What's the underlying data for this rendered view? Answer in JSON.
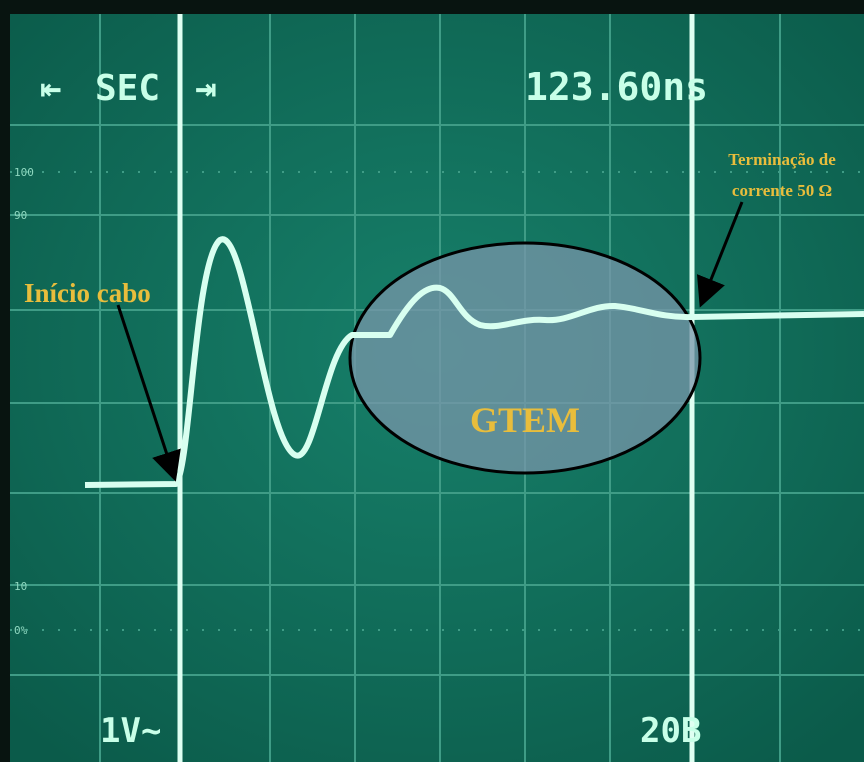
{
  "screen": {
    "sweep_label": "SEC",
    "time_readout": "123.60ns",
    "scale_top": [
      "100",
      "90"
    ],
    "scale_bottom": [
      "10",
      "0%"
    ],
    "ch1_readout": "1V~",
    "ch2_readout": "20B"
  },
  "annotations": {
    "cable_start": "Início cabo",
    "termination": [
      "Terminação de",
      "corrente 50 Ω"
    ],
    "region": "GTEM"
  }
}
